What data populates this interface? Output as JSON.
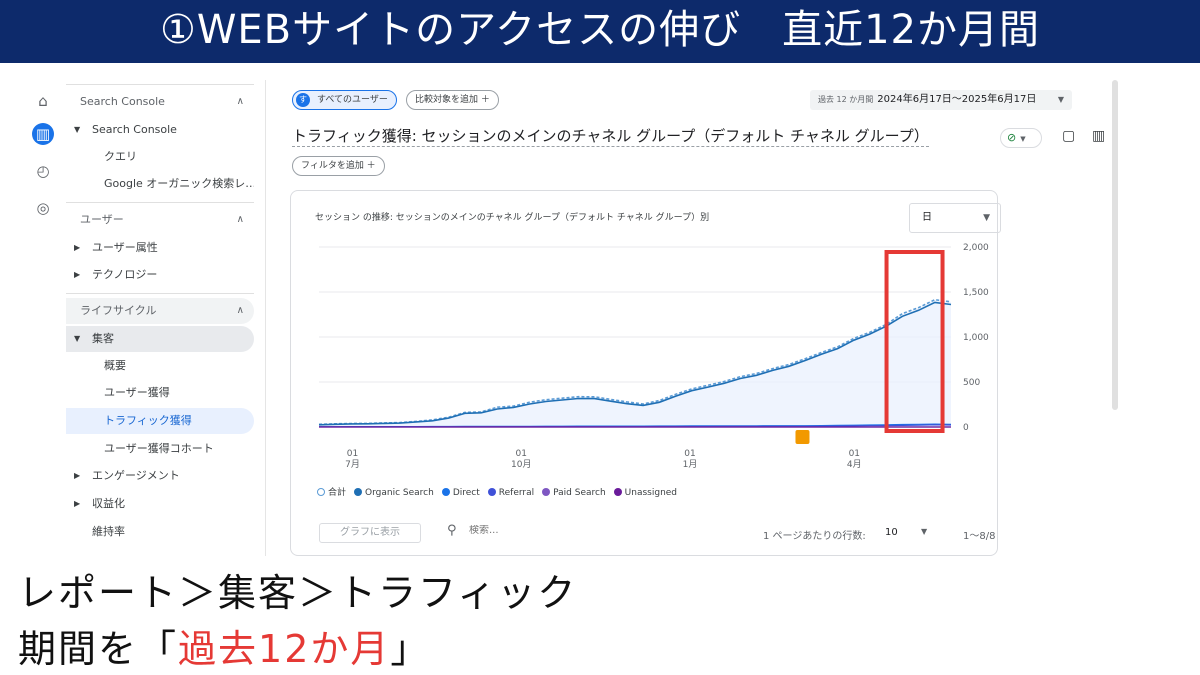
{
  "banner": {
    "title": "①WEBサイトのアクセスの伸び　直近12か月間"
  },
  "rail": {
    "icons": [
      "home-icon",
      "reports-icon",
      "explore-icon",
      "advertising-icon"
    ]
  },
  "nav": {
    "sec_search_console": "Search Console",
    "item_search_console": "Search Console",
    "item_query": "クエリ",
    "item_google_organic": "Google オーガニック検索レ…",
    "sec_user": "ユーザー",
    "item_user_attr": "ユーザー属性",
    "item_tech": "テクノロジー",
    "sec_lifecycle": "ライフサイクル",
    "item_acquisition": "集客",
    "item_overview": "概要",
    "item_user_acq": "ユーザー獲得",
    "item_traffic_acq": "トラフィック獲得",
    "item_user_cohort": "ユーザー獲得コホート",
    "item_engagement": "エンゲージメント",
    "item_monetization": "収益化",
    "item_retention": "維持率"
  },
  "toolbar": {
    "all_users": "すべてのユーザー",
    "add_compare": "比較対象を追加 ＋",
    "date_label": "過去 12 か月間",
    "date_range": "2024年6月17日〜2025年6月17日",
    "add_filter": "フィルタを追加 ＋"
  },
  "page": {
    "title": "トラフィック獲得: セッションのメインのチャネル グループ（デフォルト チャネル グループ）"
  },
  "card": {
    "title": "セッション の推移: セッションのメインのチャネル グループ（デフォルト チャネル グループ）別",
    "granularity": "日",
    "show_graph": "グラフに表示",
    "search_placeholder": "検索...",
    "rows_per_page_label": "1 ページあたりの行数:",
    "rows_per_page": "10",
    "range": "1〜8/8"
  },
  "chart_data": {
    "type": "line",
    "title": "セッション の推移: セッションのメインのチャネル グループ（デフォルト チャネル グループ）別",
    "x_ticks": [
      {
        "day": "01",
        "month": "7月",
        "pos": 0.053
      },
      {
        "day": "01",
        "month": "10月",
        "pos": 0.32
      },
      {
        "day": "01",
        "month": "1月",
        "pos": 0.587
      },
      {
        "day": "01",
        "month": "4月",
        "pos": 0.847
      }
    ],
    "y_ticks": [
      "2,000",
      "1,500",
      "1,000",
      "500",
      "0"
    ],
    "ylim": [
      0,
      2000
    ],
    "series": [
      {
        "name": "合計",
        "color": "#5b9bd5",
        "values": [
          30,
          35,
          40,
          40,
          45,
          50,
          60,
          80,
          110,
          160,
          170,
          220,
          230,
          280,
          300,
          320,
          340,
          330,
          310,
          280,
          250,
          300,
          360,
          420,
          470,
          500,
          560,
          600,
          640,
          700,
          760,
          820,
          900,
          980,
          1050,
          1150,
          1250,
          1330,
          1420,
          1380
        ]
      },
      {
        "name": "Organic Search",
        "color": "#1f6fb4",
        "values": [
          25,
          30,
          35,
          35,
          40,
          45,
          55,
          70,
          100,
          150,
          160,
          200,
          215,
          260,
          280,
          300,
          320,
          310,
          290,
          260,
          235,
          280,
          340,
          400,
          450,
          480,
          540,
          580,
          620,
          680,
          740,
          800,
          880,
          960,
          1030,
          1130,
          1220,
          1300,
          1390,
          1350
        ]
      },
      {
        "name": "Direct",
        "color": "#1a73e8",
        "values": [
          3,
          3,
          4,
          4,
          4,
          5,
          5,
          6,
          6,
          7,
          7,
          8,
          8,
          8,
          9,
          9,
          10,
          10,
          10,
          10,
          10,
          11,
          11,
          12,
          12,
          12,
          13,
          13,
          14,
          14,
          15,
          16,
          18,
          20,
          22,
          25,
          28,
          30,
          32,
          30
        ]
      },
      {
        "name": "Referral",
        "color": "#3f51d8",
        "values": [
          1,
          1,
          1,
          1,
          2,
          2,
          2,
          3,
          3,
          3,
          3,
          4,
          4,
          4,
          4,
          5,
          5,
          5,
          5,
          5,
          5,
          6,
          6,
          6,
          6,
          7,
          7,
          7,
          8,
          8,
          8,
          9,
          10,
          12,
          14,
          16,
          18,
          20,
          24,
          22
        ]
      },
      {
        "name": "Paid Search",
        "color": "#7e57c2",
        "values": [
          0,
          0,
          0,
          0,
          0,
          0,
          0,
          0,
          0,
          0,
          0,
          0,
          0,
          0,
          0,
          0,
          0,
          0,
          0,
          0,
          0,
          0,
          0,
          0,
          0,
          0,
          0,
          0,
          0,
          0,
          0,
          0,
          0,
          0,
          0,
          0,
          0,
          0,
          0,
          0
        ]
      },
      {
        "name": "Unassigned",
        "color": "#6a1b9a",
        "values": [
          0,
          0,
          0,
          0,
          0,
          0,
          0,
          0,
          0,
          0,
          0,
          0,
          0,
          0,
          0,
          0,
          0,
          0,
          0,
          0,
          0,
          0,
          0,
          0,
          0,
          0,
          0,
          0,
          0,
          0,
          0,
          0,
          0,
          0,
          0,
          0,
          0,
          0,
          0,
          0
        ]
      }
    ],
    "annotation": "highlight last ~6 weeks",
    "grid": true
  },
  "caption": {
    "line1": "レポート＞集客＞トラフィック",
    "line2_prefix": "期間を「",
    "line2_highlight": "過去12か月",
    "line2_suffix": "」"
  },
  "colors": {
    "banner": "#0d2a6b",
    "highlight_box": "#e53935",
    "accent": "#1a73e8"
  }
}
